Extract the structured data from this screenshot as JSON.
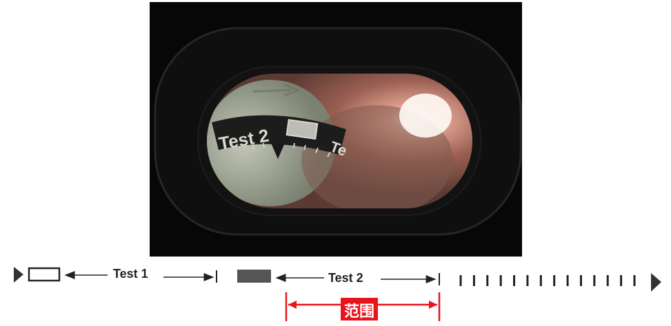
{
  "photo": {
    "dial_text": "Test 2",
    "dial_text_partial": "Te"
  },
  "diagram": {
    "segment1_label": "Test 1",
    "segment2_label": "Test 2",
    "range_label": "范围",
    "tick_count": 14,
    "colors": {
      "range": "#e8141b",
      "line": "#222222",
      "filled_box": "#555555"
    }
  }
}
